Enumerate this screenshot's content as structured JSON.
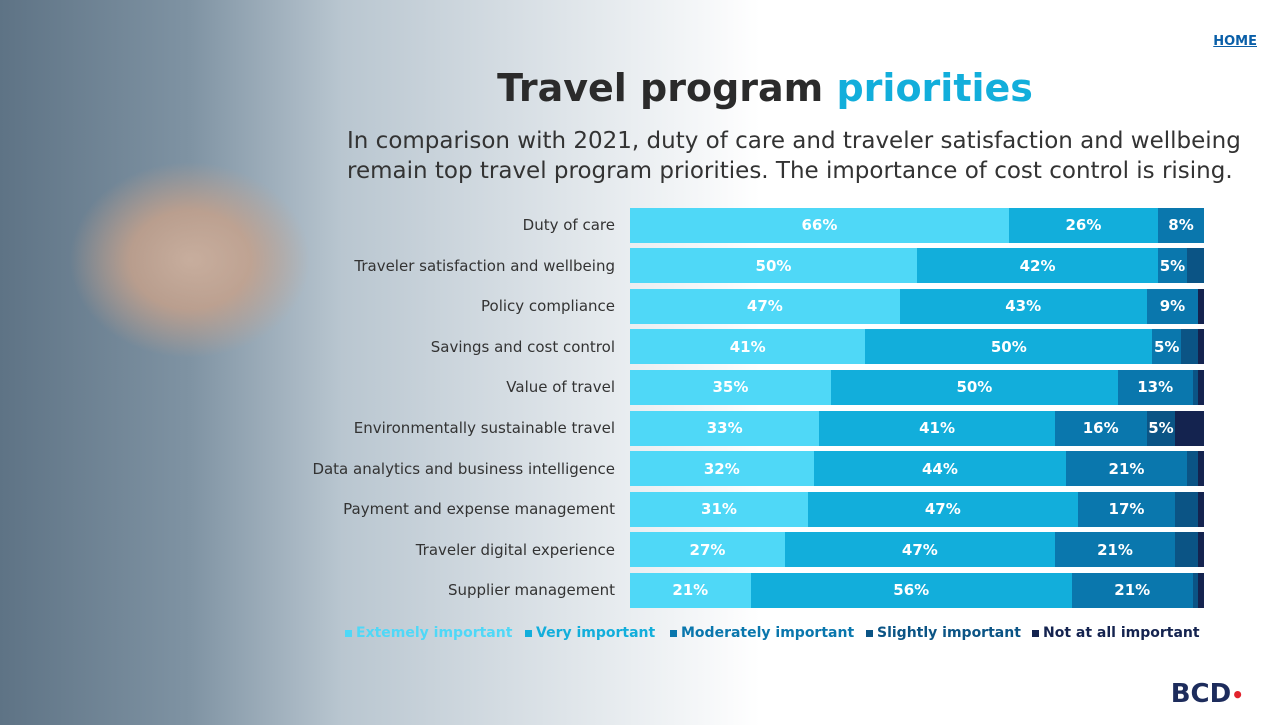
{
  "nav": {
    "home": "HOME"
  },
  "logo": "BCD",
  "chart_data": {
    "type": "stacked-bar-horizontal",
    "title": "Travel program",
    "title_highlight": "priorities",
    "subtitle_lines": [
      "In comparison with 2021, duty of care and traveler satisfaction and wellbeing",
      "remain top travel program priorities. The importance of cost control is rising."
    ],
    "categories": [
      "Duty of care",
      "Traveler satisfaction and wellbeing",
      "Policy compliance",
      "Savings and cost control",
      "Value of travel",
      "Environmentally sustainable travel",
      "Data analytics and business intelligence",
      "Payment and expense management",
      "Traveler digital experience",
      "Supplier management"
    ],
    "xlim": [
      0,
      100
    ],
    "series": [
      {
        "name": "Extemely important",
        "color": "#4fd8f7",
        "values": [
          66,
          50,
          47,
          41,
          35,
          33,
          32,
          31,
          27,
          21
        ],
        "value_labels": [
          "66%",
          "50%",
          "47%",
          "41%",
          "35%",
          "33%",
          "32%",
          "31%",
          "27%",
          "21%"
        ]
      },
      {
        "name": "Very important",
        "color": "#12aedb",
        "values": [
          26,
          42,
          43,
          50,
          50,
          41,
          44,
          47,
          47,
          56
        ],
        "value_labels": [
          "26%",
          "42%",
          "43%",
          "50%",
          "50%",
          "41%",
          "44%",
          "47%",
          "47%",
          "56%"
        ]
      },
      {
        "name": "Moderately important",
        "color": "#0a77ad",
        "values": [
          8,
          5,
          9,
          5,
          13,
          16,
          21,
          17,
          21,
          21
        ],
        "value_labels": [
          "8%",
          "5%",
          "9%",
          "5%",
          "13%",
          "16%",
          "21%",
          "17%",
          "21%",
          "21%"
        ]
      },
      {
        "name": "Slightly important",
        "color": "#0b5485",
        "values": [
          0,
          3,
          0,
          3,
          1,
          5,
          2,
          4,
          4,
          1
        ],
        "value_labels": [
          null,
          null,
          null,
          null,
          null,
          "5%",
          null,
          null,
          null,
          null
        ]
      },
      {
        "name": "Not at all important",
        "color": "#14234f",
        "values": [
          0,
          0,
          1,
          1,
          1,
          5,
          1,
          1,
          1,
          1
        ],
        "value_labels": [
          null,
          null,
          null,
          null,
          null,
          null,
          null,
          null,
          null,
          null
        ]
      }
    ]
  }
}
